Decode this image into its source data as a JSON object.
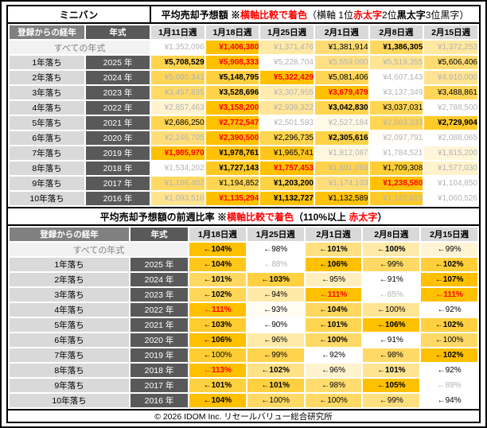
{
  "category": "ミニバン",
  "colors": {
    "scale_high": "#FFC000",
    "scale_low": "#FFFFFF",
    "rank1_text": "#FF0000",
    "other_text": "#B3B3B3",
    "header_dark": "#595959",
    "header_mid": "#808080",
    "header_light": "#D9D9D9",
    "all_row_bg": "#F2F2F2"
  },
  "style_codes": {
    "r": "rank1-red-bold",
    "b": "black-bold",
    "n": "black-normal",
    "g": "gray"
  },
  "table1": {
    "title_segments": [
      {
        "t": "平均売却予想額 ※",
        "s": "k"
      },
      {
        "t": "横軸比較で着色",
        "s": "r"
      },
      {
        "t": "（横軸 1位",
        "s": "p"
      },
      {
        "t": "赤太字",
        "s": "r"
      },
      {
        "t": " 2位",
        "s": "p"
      },
      {
        "t": "黒太字",
        "s": "k"
      },
      {
        "t": " 3位黒字）",
        "s": "p"
      }
    ],
    "age_header": "登録からの経年",
    "year_header": "年式",
    "weeks": [
      "1月11日週",
      "1月18日週",
      "1月25日週",
      "2月1日週",
      "2月8日週",
      "2月15日週"
    ],
    "value_prefix": "¥",
    "all_row": {
      "label": "すべての年式",
      "values": [
        1352096,
        1406380,
        1371476,
        1381914,
        1386305,
        1372253
      ],
      "styles": [
        "g",
        "r",
        "g",
        "n",
        "b",
        "g"
      ]
    },
    "rows": [
      {
        "age": "1年落ち",
        "year": "2025 年",
        "values": [
          5708529,
          5908333,
          5228704,
          5559000,
          5519355,
          5606406
        ],
        "styles": [
          "b",
          "r",
          "g",
          "g",
          "g",
          "n"
        ]
      },
      {
        "age": "2年落ち",
        "year": "2024 年",
        "values": [
          5080341,
          5148795,
          5322429,
          5081406,
          4607143,
          4910000
        ],
        "styles": [
          "g",
          "b",
          "r",
          "n",
          "g",
          "g"
        ]
      },
      {
        "age": "3年落ち",
        "year": "2023 年",
        "values": [
          3457835,
          3528696,
          3307955,
          3679479,
          3137349,
          3488861
        ],
        "styles": [
          "g",
          "b",
          "g",
          "r",
          "g",
          "n"
        ]
      },
      {
        "age": "4年落ち",
        "year": "2022 年",
        "values": [
          2857463,
          3158200,
          2939322,
          3042830,
          3037031,
          2788500
        ],
        "styles": [
          "g",
          "r",
          "g",
          "b",
          "n",
          "g"
        ]
      },
      {
        "age": "5年落ち",
        "year": "2021 年",
        "values": [
          2686250,
          2772547,
          2501593,
          2527184,
          2683333,
          2729904
        ],
        "styles": [
          "n",
          "r",
          "g",
          "g",
          "g",
          "b"
        ]
      },
      {
        "age": "6年落ち",
        "year": "2020 年",
        "values": [
          2246705,
          2390500,
          2296735,
          2305616,
          2097791,
          2088065
        ],
        "styles": [
          "g",
          "r",
          "n",
          "b",
          "g",
          "g"
        ]
      },
      {
        "age": "7年落ち",
        "year": "2019 年",
        "values": [
          1985970,
          1978761,
          1965741,
          1812087,
          1784521,
          1815200
        ],
        "styles": [
          "r",
          "b",
          "n",
          "g",
          "g",
          "g"
        ]
      },
      {
        "age": "8年落ち",
        "year": "2018 年",
        "values": [
          1534202,
          1727143,
          1757453,
          1691058,
          1709308,
          1577030
        ],
        "styles": [
          "g",
          "b",
          "r",
          "g",
          "n",
          "g"
        ]
      },
      {
        "age": "9年落ち",
        "year": "2017 年",
        "values": [
          1186402,
          1194852,
          1203200,
          1174103,
          1238580,
          1104850
        ],
        "styles": [
          "g",
          "n",
          "b",
          "g",
          "r",
          "g"
        ]
      },
      {
        "age": "10年落ち",
        "year": "2016 年",
        "values": [
          1093516,
          1135294,
          1132727,
          1132589,
          1122619,
          1060526
        ],
        "styles": [
          "g",
          "r",
          "b",
          "n",
          "g",
          "g"
        ]
      }
    ]
  },
  "table2": {
    "title_segments": [
      {
        "t": "平均売却予想額の前週比率 ※",
        "s": "k"
      },
      {
        "t": "横軸比較で着色",
        "s": "r"
      },
      {
        "t": "（110%以上 ",
        "s": "k"
      },
      {
        "t": "赤太字",
        "s": "r"
      },
      {
        "t": "）",
        "s": "k"
      }
    ],
    "age_header": "登録からの経年",
    "year_header": "年式",
    "weeks": [
      "1月18日週",
      "1月25日週",
      "2月1日週",
      "2月8日週",
      "2月15日週"
    ],
    "value_prefix": "←",
    "value_suffix": "%",
    "all_row": {
      "label": "すべての年式",
      "values": [
        104,
        98,
        101,
        100,
        99
      ],
      "styles": [
        "b",
        "n",
        "b",
        "b",
        "n"
      ]
    },
    "rows": [
      {
        "age": "1年落ち",
        "year": "2025 年",
        "values": [
          104,
          88,
          106,
          99,
          102
        ],
        "styles": [
          "b",
          "g",
          "b",
          "n",
          "b"
        ]
      },
      {
        "age": "2年落ち",
        "year": "2024 年",
        "values": [
          101,
          103,
          95,
          91,
          107
        ],
        "styles": [
          "b",
          "b",
          "n",
          "n",
          "b"
        ]
      },
      {
        "age": "3年落ち",
        "year": "2023 年",
        "values": [
          102,
          94,
          111,
          85,
          111
        ],
        "styles": [
          "b",
          "n",
          "r",
          "g",
          "r"
        ]
      },
      {
        "age": "4年落ち",
        "year": "2022 年",
        "values": [
          111,
          93,
          104,
          100,
          92
        ],
        "styles": [
          "r",
          "n",
          "b",
          "n",
          "n"
        ]
      },
      {
        "age": "5年落ち",
        "year": "2021 年",
        "values": [
          103,
          90,
          101,
          106,
          102
        ],
        "styles": [
          "b",
          "n",
          "b",
          "b",
          "b"
        ]
      },
      {
        "age": "6年落ち",
        "year": "2020 年",
        "values": [
          106,
          96,
          100,
          91,
          100
        ],
        "styles": [
          "b",
          "n",
          "b",
          "n",
          "n"
        ]
      },
      {
        "age": "7年落ち",
        "year": "2019 年",
        "values": [
          100,
          99,
          92,
          98,
          102
        ],
        "styles": [
          "n",
          "n",
          "n",
          "n",
          "b"
        ]
      },
      {
        "age": "8年落ち",
        "year": "2018 年",
        "values": [
          113,
          102,
          96,
          101,
          92
        ],
        "styles": [
          "r",
          "b",
          "n",
          "b",
          "n"
        ]
      },
      {
        "age": "9年落ち",
        "year": "2017 年",
        "values": [
          101,
          101,
          98,
          105,
          89
        ],
        "styles": [
          "b",
          "b",
          "n",
          "b",
          "g"
        ]
      },
      {
        "age": "10年落ち",
        "year": "2016 年",
        "values": [
          104,
          100,
          100,
          99,
          94
        ],
        "styles": [
          "b",
          "n",
          "n",
          "n",
          "n"
        ]
      }
    ]
  },
  "footer": "© 2026 IDOM Inc. リセールバリュー総合研究所"
}
